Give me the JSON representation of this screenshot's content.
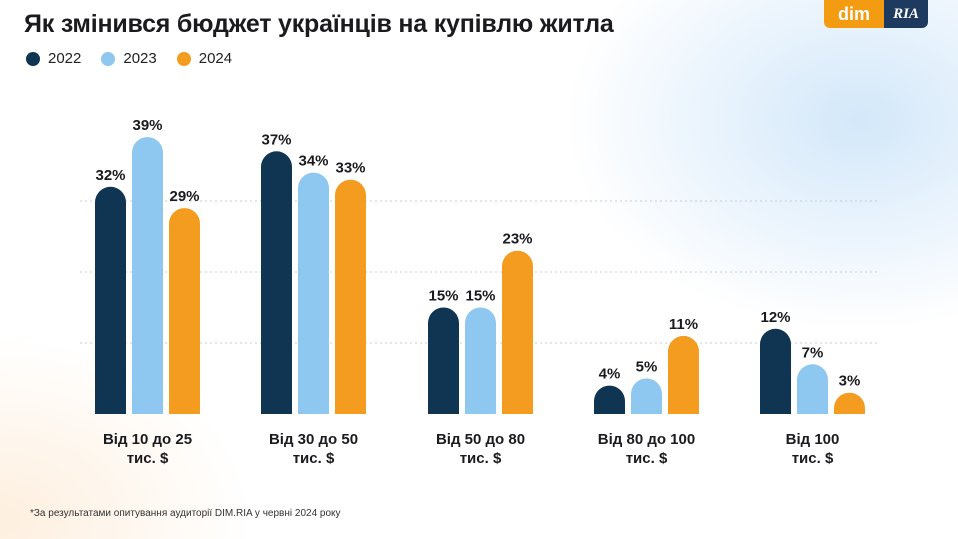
{
  "title": "Як змінився бюджет українців на купівлю житла",
  "logo": {
    "left": "dim",
    "right": "RIA"
  },
  "footnote": "*За результатами опитування аудиторії DIM.RIA у червні 2024 року",
  "colors": {
    "2022": "#0f3553",
    "2023": "#8ec7f0",
    "2024": "#f39c1f"
  },
  "chart_data": {
    "type": "bar",
    "categories": [
      [
        "Від 10 до 25",
        "тис. $"
      ],
      [
        "Від 30 до 50",
        "тис. $"
      ],
      [
        "Від 50 до 80",
        "тис. $"
      ],
      [
        "Від 80 до 100",
        "тис. $"
      ],
      [
        "Від 100",
        "тис. $"
      ]
    ],
    "series": [
      {
        "name": "2022",
        "values": [
          32,
          37,
          15,
          4,
          12
        ],
        "labels": [
          "32%",
          "37%",
          "15%",
          "4%",
          "12%"
        ]
      },
      {
        "name": "2023",
        "values": [
          39,
          34,
          15,
          5,
          7
        ],
        "labels": [
          "39%",
          "34%",
          "15%",
          "5%",
          "7%"
        ]
      },
      {
        "name": "2024",
        "values": [
          29,
          33,
          23,
          11,
          3
        ],
        "labels": [
          "29%",
          "33%",
          "23%",
          "11%",
          "3%"
        ]
      }
    ],
    "ylim": [
      0,
      40
    ],
    "grid": true,
    "legend_position": "top-left",
    "xlabel": "",
    "ylabel": ""
  }
}
